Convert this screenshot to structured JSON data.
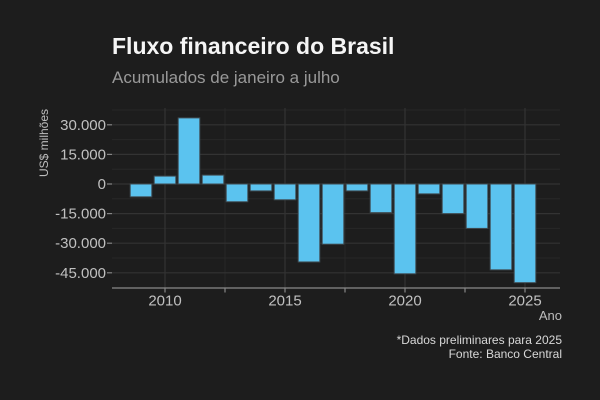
{
  "chart_data": {
    "type": "bar",
    "title": "Fluxo financeiro do Brasil",
    "subtitle": "Acumulados de janeiro a julho",
    "xlabel": "Ano",
    "ylabel": "US$ milhões",
    "note": "*Dados preliminares para 2025",
    "source": "Fonte: Banco Central",
    "categories": [
      2009,
      2010,
      2011,
      2012,
      2013,
      2014,
      2015,
      2016,
      2017,
      2018,
      2019,
      2020,
      2021,
      2022,
      2023,
      2024,
      2025
    ],
    "values": [
      -6500,
      4000,
      33500,
      4500,
      -9000,
      -3500,
      -8000,
      -39500,
      -30500,
      -3500,
      -14500,
      -45500,
      -5000,
      -15000,
      -22500,
      -43500,
      -50000
    ],
    "ylim": [
      -52500,
      37500
    ],
    "xlim": [
      2007.8,
      2026.5
    ],
    "y_ticks": [
      {
        "value": 30000,
        "label": "30.000"
      },
      {
        "value": 15000,
        "label": "15.000"
      },
      {
        "value": 0,
        "label": "0"
      },
      {
        "value": -15000,
        "label": "-15.000"
      },
      {
        "value": -30000,
        "label": "-30.000"
      },
      {
        "value": -45000,
        "label": "-45.000"
      }
    ],
    "x_ticks": [
      {
        "value": 2010,
        "label": "2010"
      },
      {
        "value": 2015,
        "label": "2015"
      },
      {
        "value": 2020,
        "label": "2020"
      },
      {
        "value": 2025,
        "label": "2025"
      }
    ],
    "grid": true,
    "legend": false
  },
  "colors": {
    "background": "#1d1d1d",
    "bar": "#5bc3ef",
    "bar_border": "#3f4a50",
    "grid_major": "#333333",
    "grid_minor": "#282828",
    "axis_line": "#8a8a8a",
    "tick": "#868686",
    "title": "#f5f5f5",
    "subtitle": "#999999",
    "tick_label": "#c0c0c0",
    "axis_title": "#bdbdbd",
    "caption": "#d8d8d8"
  }
}
